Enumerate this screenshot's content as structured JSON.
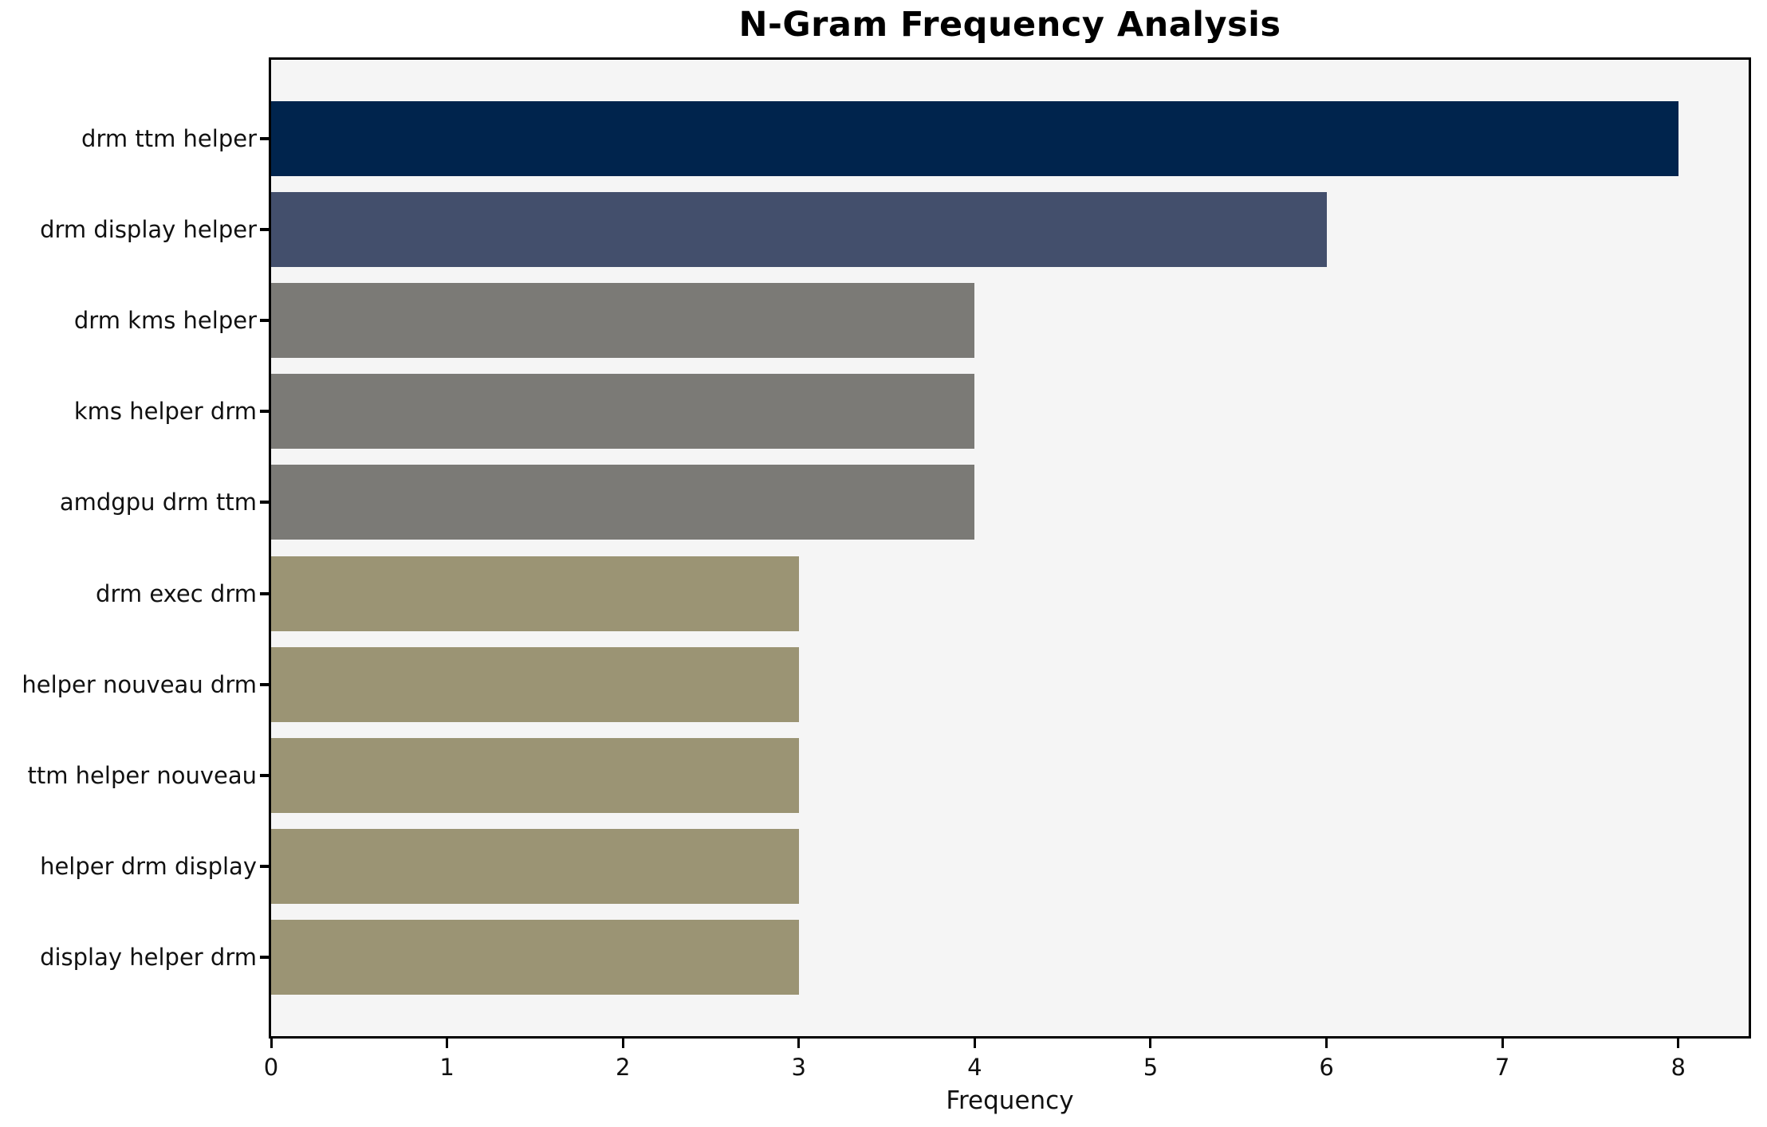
{
  "chart_data": {
    "type": "bar",
    "orientation": "horizontal",
    "title": "N-Gram Frequency Analysis",
    "xlabel": "Frequency",
    "ylabel": "",
    "categories": [
      "drm ttm helper",
      "drm display helper",
      "drm kms helper",
      "kms helper drm",
      "amdgpu drm ttm",
      "drm exec drm",
      "helper nouveau drm",
      "ttm helper nouveau",
      "helper drm display",
      "display helper drm"
    ],
    "values": [
      8,
      6,
      4,
      4,
      4,
      3,
      3,
      3,
      3,
      3
    ],
    "bar_colors": [
      "#00244d",
      "#434f6c",
      "#7b7a76",
      "#7b7a76",
      "#7b7a76",
      "#9b9474",
      "#9b9474",
      "#9b9474",
      "#9b9474",
      "#9b9474"
    ],
    "xlim": [
      0,
      8.4
    ],
    "xticks": [
      0,
      1,
      2,
      3,
      4,
      5,
      6,
      7,
      8
    ],
    "grid": false,
    "legend": null,
    "plot_background": "#f5f5f5",
    "spine_color": "#000000",
    "text_color": "#111111"
  }
}
